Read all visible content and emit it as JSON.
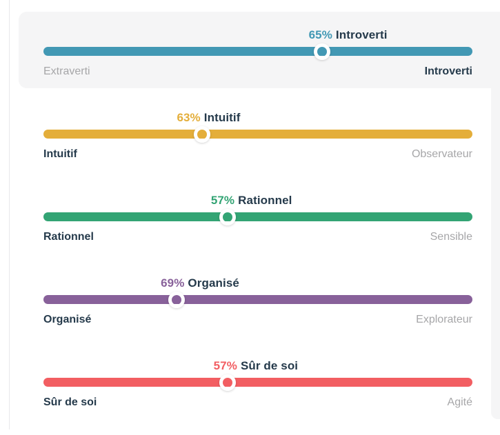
{
  "page": {
    "background": "#ffffff",
    "divider_color": "#e8e8ea",
    "panel_color": "#f5f5f6",
    "dark_text_color": "#253a4b",
    "muted_text_color": "#a6a6a8"
  },
  "traits": [
    {
      "id": "mind",
      "percent": "65%",
      "name": "Introverti",
      "color": "#4298b4",
      "left_label": "Extraverti",
      "right_label": "Introverti",
      "winning_side": "right",
      "handle_pct": 65,
      "label_pct": 71,
      "highlighted": true
    },
    {
      "id": "energy",
      "percent": "63%",
      "name": "Intuitif",
      "color": "#e4ae3a",
      "left_label": "Intuitif",
      "right_label": "Observateur",
      "winning_side": "left",
      "handle_pct": 37,
      "label_pct": 38.5,
      "highlighted": false
    },
    {
      "id": "nature",
      "percent": "57%",
      "name": "Rationnel",
      "color": "#33a474",
      "left_label": "Rationnel",
      "right_label": "Sensible",
      "winning_side": "left",
      "handle_pct": 43,
      "label_pct": 48.5,
      "highlighted": false
    },
    {
      "id": "tactics",
      "percent": "69%",
      "name": "Organisé",
      "color": "#88619a",
      "left_label": "Organisé",
      "right_label": "Explorateur",
      "winning_side": "left",
      "handle_pct": 31,
      "label_pct": 36.5,
      "highlighted": false
    },
    {
      "id": "identity",
      "percent": "57%",
      "name": "Sûr de soi",
      "color": "#f25e62",
      "left_label": "Sûr de soi",
      "right_label": "Agité",
      "winning_side": "left",
      "handle_pct": 43,
      "label_pct": 49.5,
      "highlighted": false
    }
  ]
}
